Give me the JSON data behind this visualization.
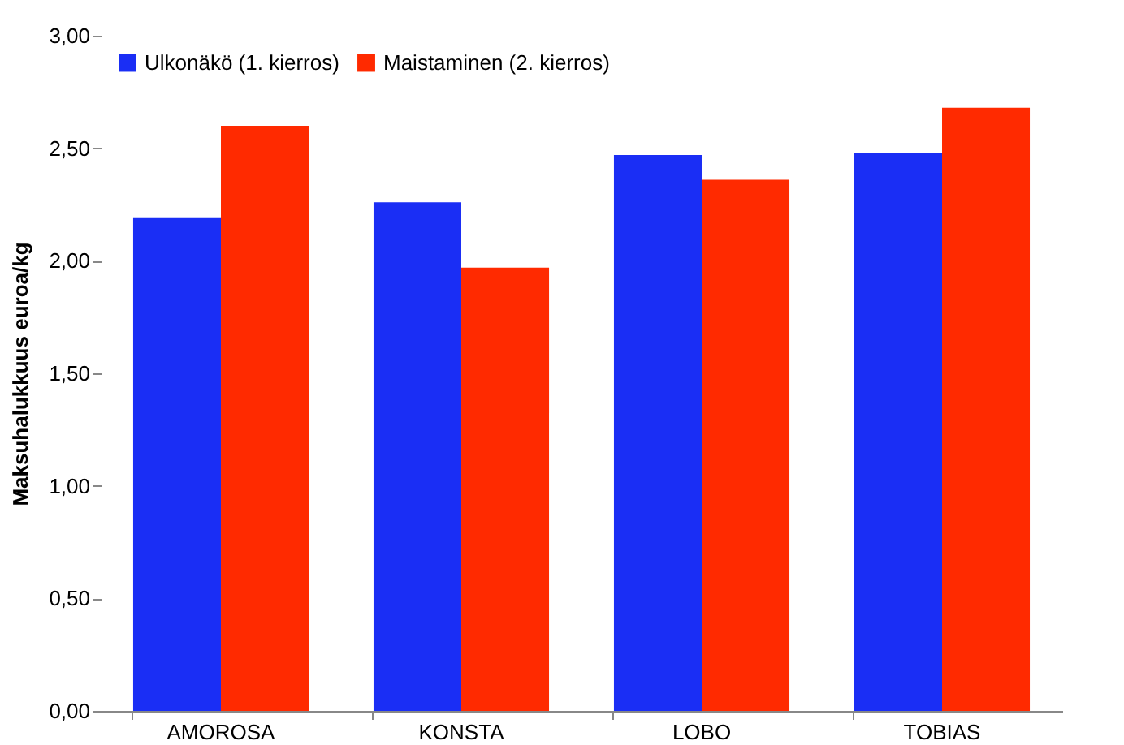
{
  "chart_data": {
    "type": "bar",
    "ylabel": "Maksuhalukkuus euroa/kg",
    "categories": [
      "AMOROSA",
      "KONSTA",
      "LOBO",
      "TOBIAS"
    ],
    "series": [
      {
        "name": "Ulkonäkö (1. kierros)",
        "color": "#1a2ef5",
        "values": [
          2.19,
          2.26,
          2.47,
          2.48
        ]
      },
      {
        "name": "Maistaminen (2. kierros)",
        "color": "#ff2a00",
        "values": [
          2.6,
          1.97,
          2.36,
          2.68
        ]
      }
    ],
    "ylim": [
      0,
      3
    ],
    "yticks": [
      {
        "value": 0,
        "label": "0,00"
      },
      {
        "value": 0.5,
        "label": "0,50"
      },
      {
        "value": 1,
        "label": "1,00"
      },
      {
        "value": 1.5,
        "label": "1,50"
      },
      {
        "value": 2,
        "label": "2,00"
      },
      {
        "value": 2.5,
        "label": "2,50"
      },
      {
        "value": 3,
        "label": "3,00"
      }
    ],
    "legend": "top left",
    "grid": false
  }
}
